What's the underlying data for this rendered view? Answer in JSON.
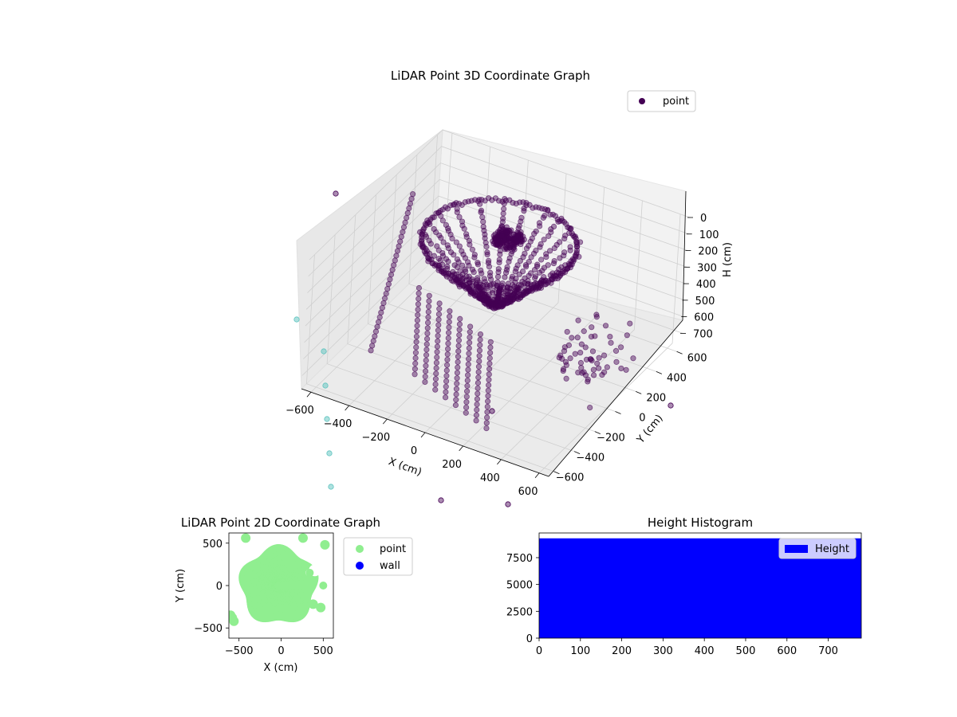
{
  "chart_data": [
    {
      "type": "scatter",
      "title": "LiDAR Point 3D Coordinate Graph",
      "xlabel": "X (cm)",
      "ylabel": "Y (cm)",
      "zlabel": "H (cm)",
      "xlim": [
        -650,
        650
      ],
      "ylim": [
        -650,
        650
      ],
      "zlim": [
        0,
        780
      ],
      "z_inverted": true,
      "x_ticks": [
        -600,
        -400,
        -200,
        0,
        200,
        400,
        600
      ],
      "y_ticks": [
        -600,
        -400,
        -200,
        0,
        200,
        400,
        600
      ],
      "z_ticks": [
        0,
        100,
        200,
        300,
        400,
        500,
        600,
        700
      ],
      "legend": [
        "point"
      ],
      "legend_position": "top-right",
      "grid": true,
      "colors": {
        "point": "#440154",
        "outlier": "#5ec4bf"
      },
      "series": [
        {
          "name": "point",
          "description_shape": "inverted dome of scan rings converging to a dense cluster near the top center"
        }
      ]
    },
    {
      "type": "scatter",
      "title": "LiDAR Point 2D Coordinate Graph",
      "xlabel": "X (cm)",
      "ylabel": "Y (cm)",
      "xlim": [
        -620,
        620
      ],
      "ylim": [
        -620,
        620
      ],
      "x_ticks": [
        -500,
        0,
        500
      ],
      "y_ticks": [
        -500,
        0,
        500
      ],
      "legend": [
        "point",
        "wall"
      ],
      "legend_position": "outside right",
      "colors": {
        "point": "#90ee90",
        "wall": "#0000ff"
      }
    },
    {
      "type": "bar",
      "title": "Height Histogram",
      "xlim": [
        0,
        780
      ],
      "ylim": [
        0,
        9800
      ],
      "x_ticks": [
        0,
        100,
        200,
        300,
        400,
        500,
        600,
        700
      ],
      "y_ticks": [
        0,
        2500,
        5000,
        7500
      ],
      "series": [
        {
          "name": "Height",
          "values": [
            9300
          ]
        }
      ],
      "bin_range": [
        0,
        780
      ],
      "legend": [
        "Height"
      ],
      "legend_position": "top-right",
      "colors": {
        "Height": "#0000ff"
      }
    }
  ]
}
